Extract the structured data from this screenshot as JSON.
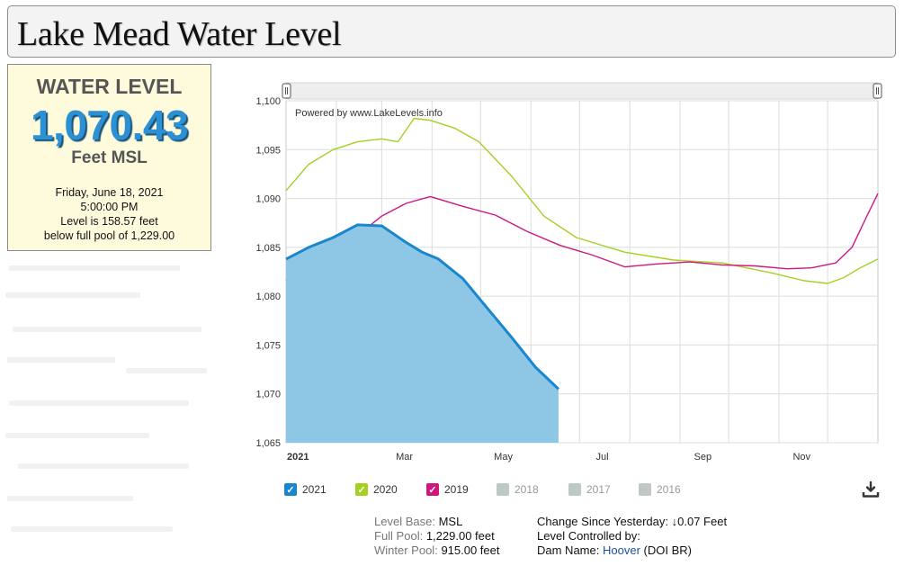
{
  "page": {
    "title": "Lake Mead Water Level"
  },
  "level_box": {
    "label": "WATER LEVEL",
    "value": "1,070.43",
    "unit": "Feet MSL",
    "date": "Friday, June 18, 2021",
    "time": "5:00:00 PM",
    "note_line1": "Level is 158.57 feet",
    "note_line2": "below full pool of 1,229.00"
  },
  "chart_data": {
    "type": "area",
    "credit": "Powered by www.LakeLevels.info",
    "x_axis_labels": [
      "2021",
      "Mar",
      "May",
      "Jul",
      "Sep",
      "Nov"
    ],
    "y_axis_labels": [
      "1,065",
      "1,070",
      "1,075",
      "1,080",
      "1,085",
      "1,090",
      "1,095",
      "1,100"
    ],
    "ylim": [
      1065,
      1100
    ],
    "x_unit": "day of year",
    "xlim": [
      1,
      366
    ],
    "grid": true,
    "series": [
      {
        "name": "2021",
        "color": "#1a86cc",
        "fill": "#8ec6e6",
        "style": "area",
        "x": [
          1,
          15,
          30,
          45,
          60,
          75,
          85,
          95,
          110,
          125,
          140,
          155,
          169
        ],
        "y": [
          1083.8,
          1085.0,
          1086.0,
          1087.3,
          1087.2,
          1085.5,
          1084.5,
          1083.8,
          1081.8,
          1078.8,
          1075.8,
          1072.7,
          1070.5
        ]
      },
      {
        "name": "2020",
        "color": "#a4d022",
        "style": "line",
        "x": [
          1,
          15,
          30,
          45,
          60,
          70,
          80,
          90,
          105,
          120,
          140,
          160,
          180,
          210,
          240,
          270,
          300,
          320,
          335,
          345,
          355,
          366
        ],
        "y": [
          1090.8,
          1093.5,
          1095.0,
          1095.8,
          1096.1,
          1095.8,
          1098.2,
          1098.0,
          1097.2,
          1095.8,
          1092.3,
          1088.2,
          1086.0,
          1084.5,
          1083.7,
          1083.4,
          1082.4,
          1081.6,
          1081.3,
          1081.9,
          1082.9,
          1083.8
        ]
      },
      {
        "name": "2019",
        "color": "#d1157e",
        "style": "line",
        "x": [
          1,
          15,
          30,
          45,
          60,
          75,
          90,
          110,
          130,
          150,
          170,
          190,
          210,
          230,
          250,
          270,
          290,
          310,
          325,
          340,
          350,
          358,
          366
        ],
        "y": [
          1081.6,
          1084.0,
          1085.7,
          1086.2,
          1088.2,
          1089.5,
          1090.2,
          1089.2,
          1088.3,
          1086.6,
          1085.2,
          1084.2,
          1083.0,
          1083.3,
          1083.5,
          1083.2,
          1083.1,
          1082.8,
          1082.9,
          1083.4,
          1085.0,
          1087.8,
          1090.5
        ]
      },
      {
        "name": "2018",
        "color": "#bfc7c7",
        "style": "hidden",
        "x": [],
        "y": []
      },
      {
        "name": "2017",
        "color": "#bfc7c7",
        "style": "hidden",
        "x": [],
        "y": []
      },
      {
        "name": "2016",
        "color": "#bfc7c7",
        "style": "hidden",
        "x": [],
        "y": []
      }
    ]
  },
  "legend": [
    {
      "label": "2021",
      "color": "#1a86cc",
      "enabled": true
    },
    {
      "label": "2020",
      "color": "#a4d022",
      "enabled": true
    },
    {
      "label": "2019",
      "color": "#d1157e",
      "enabled": true
    },
    {
      "label": "2018",
      "color": "#bfc7c7",
      "enabled": false
    },
    {
      "label": "2017",
      "color": "#bfc7c7",
      "enabled": false
    },
    {
      "label": "2016",
      "color": "#bfc7c7",
      "enabled": false
    }
  ],
  "icons": {
    "download": "download-icon",
    "checkmark": "checkmark-icon",
    "arrow": "down-arrow-icon"
  },
  "info": {
    "level_base_label": "Level Base:",
    "level_base_value": "MSL",
    "full_pool_label": "Full Pool:",
    "full_pool_value": "1,229.00 feet",
    "winter_pool_label": "Winter Pool:",
    "winter_pool_value": "915.00 feet",
    "change_label": "Change Since Yesterday:",
    "change_arrow": "↓",
    "change_value": "0.07 Feet",
    "controlled_label": "Level Controlled by:",
    "dam_label": "Dam Name:",
    "dam_link": "Hoover",
    "dam_owner": "(DOI BR)"
  }
}
